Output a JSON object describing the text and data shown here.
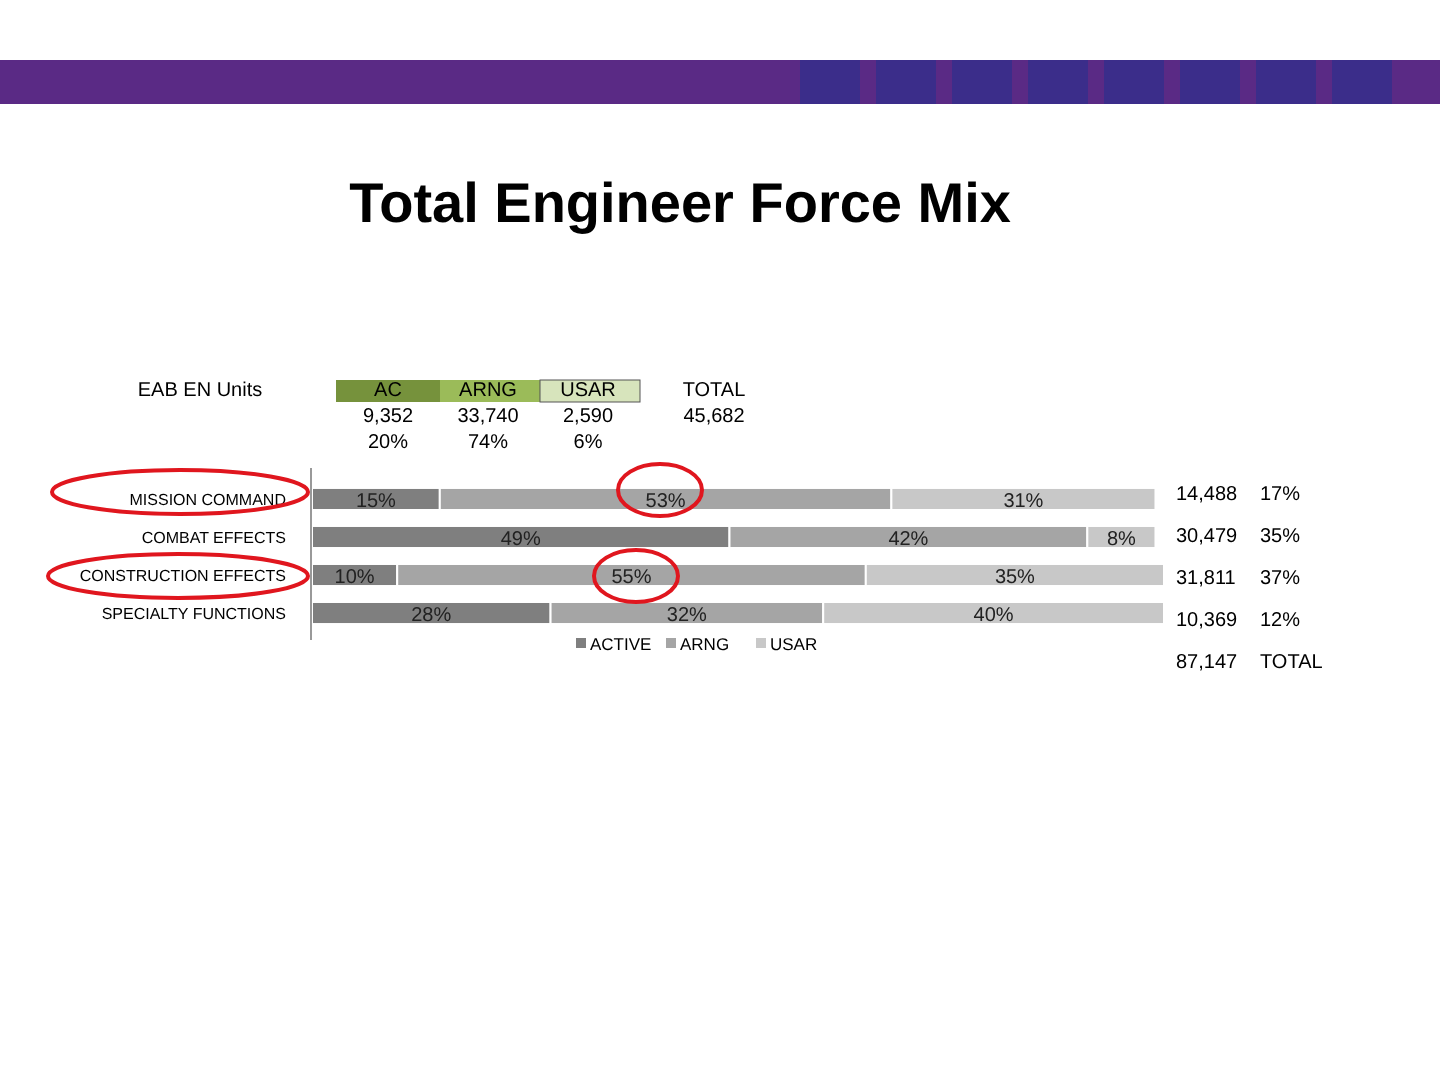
{
  "chart_data": {
    "type": "bar",
    "orientation": "horizontal",
    "stacked": true,
    "title": "Total Engineer Force Mix",
    "categories": [
      "MISSION COMMAND",
      "COMBAT EFFECTS",
      "CONSTRUCTION EFFECTS",
      "SPECIALTY FUNCTIONS"
    ],
    "series": [
      {
        "name": "ACTIVE",
        "color": "#7f7f7f",
        "values": [
          15,
          49,
          10,
          28
        ],
        "value_labels": [
          "15%",
          "49%",
          "10%",
          "28%"
        ]
      },
      {
        "name": "ARNG",
        "color": "#a5a5a5",
        "values": [
          53,
          42,
          55,
          32
        ],
        "value_labels": [
          "53%",
          "42%",
          "55%",
          "32%"
        ]
      },
      {
        "name": "USAR",
        "color": "#c8c8c8",
        "values": [
          31,
          8,
          35,
          40
        ],
        "value_labels": [
          "31%",
          "8%",
          "35%",
          "40%"
        ]
      }
    ],
    "xlim": [
      0,
      100
    ],
    "tick_labels": "y",
    "legend": "bottom",
    "annotations": [
      "EAB EN Units",
      "AC",
      "ARNG",
      "USAR",
      "TOTAL",
      "9,352",
      "33,740",
      "2,590",
      "45,682",
      "20%",
      "74%",
      "6%",
      "14,488",
      "17%",
      "30,479",
      "35%",
      "31,811",
      "37%",
      "10,369",
      "12%",
      "87,147",
      "TOTAL"
    ]
  }
}
